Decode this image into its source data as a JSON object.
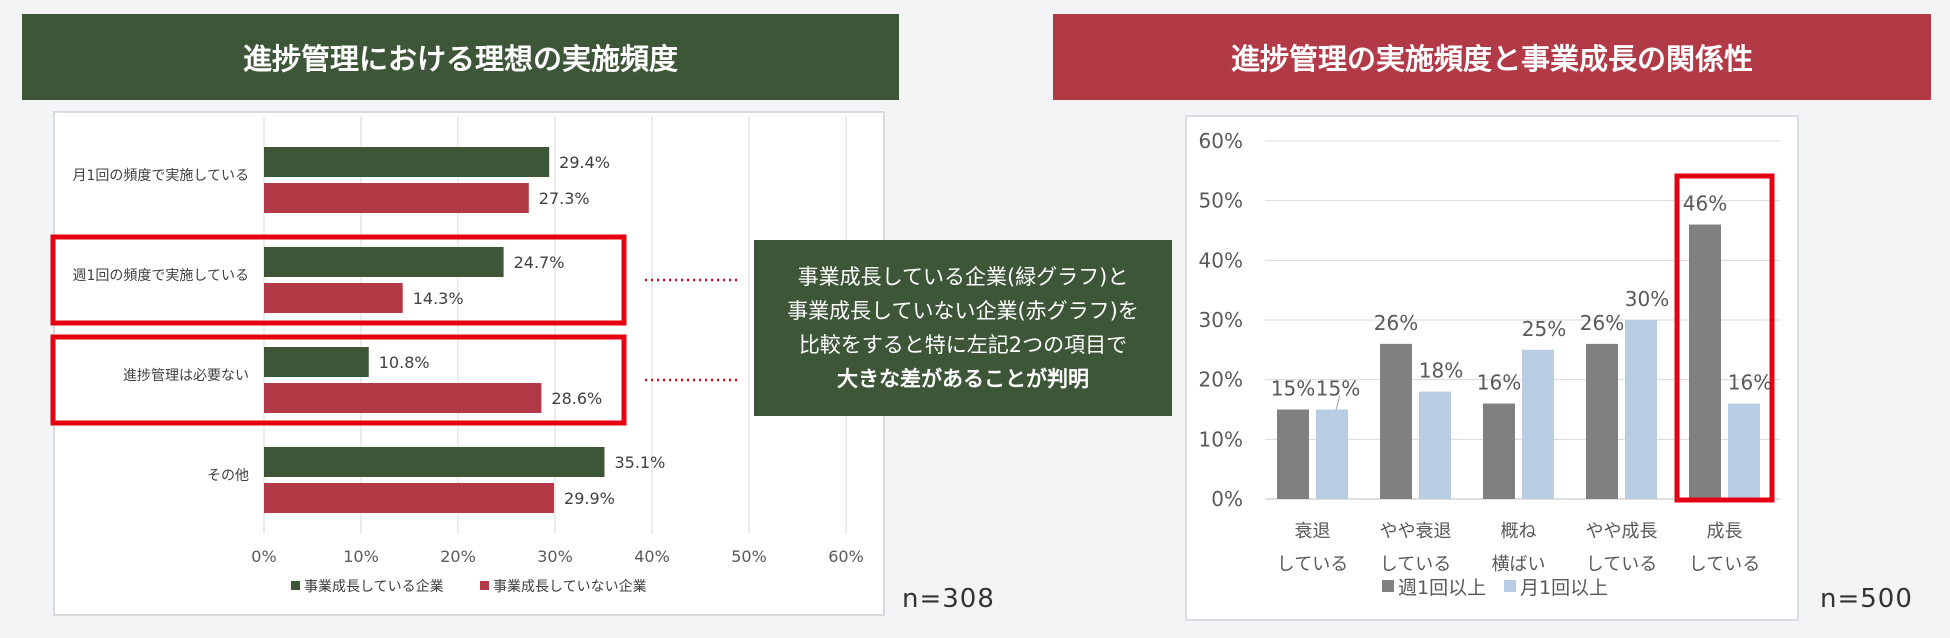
{
  "left_panel": {
    "title": "進捗管理における理想の実施頻度",
    "sample_size": "n=308"
  },
  "right_panel": {
    "title": "進捗管理の実施頻度と事業成長の関係性",
    "sample_size": "n=500"
  },
  "callout": {
    "lines": [
      "事業成長している企業(緑グラフ)と",
      "事業成長していない企業(赤グラフ)を",
      "比較をすると特に左記2つの項目で",
      "大きな差があることが判明"
    ]
  },
  "colors": {
    "green": "#3e5638",
    "red": "#b23a47",
    "highlight": "#e60012",
    "gray": "#808080",
    "lightblue": "#b8cce4"
  },
  "chart_data": [
    {
      "type": "bar",
      "orientation": "horizontal",
      "categories": [
        "月1回の頻度で実施している",
        "週1回の頻度で実施している",
        "進捗管理は必要ない",
        "その他"
      ],
      "series": [
        {
          "name": "事業成長している企業",
          "values": [
            29.4,
            24.7,
            10.8,
            35.1
          ],
          "labels": [
            "29.4%",
            "24.7%",
            "10.8%",
            "35.1%"
          ],
          "color": "#3e5638"
        },
        {
          "name": "事業成長していない企業",
          "values": [
            27.3,
            14.3,
            28.6,
            29.9
          ],
          "labels": [
            "27.3%",
            "14.3%",
            "28.6%",
            "29.9%"
          ],
          "color": "#b23a47"
        }
      ],
      "xlim": [
        0,
        60
      ],
      "xticks": [
        "0%",
        "10%",
        "20%",
        "30%",
        "40%",
        "50%",
        "60%"
      ],
      "grid": true,
      "legend": "bottom",
      "highlighted_categories": [
        "週1回の頻度で実施している",
        "進捗管理は必要ない"
      ]
    },
    {
      "type": "bar",
      "orientation": "vertical",
      "categories": [
        [
          "衰退",
          "している"
        ],
        [
          "やや衰退",
          "している"
        ],
        [
          "概ね",
          "横ばい"
        ],
        [
          "やや成長",
          "している"
        ],
        [
          "成長",
          "している"
        ]
      ],
      "series": [
        {
          "name": "週1回以上",
          "values": [
            15,
            26,
            16,
            26,
            46
          ],
          "labels": [
            "15%",
            "26%",
            "16%",
            "26%",
            "46%"
          ],
          "color": "#808080"
        },
        {
          "name": "月1回以上",
          "values": [
            15,
            18,
            25,
            30,
            16
          ],
          "labels": [
            "15%",
            "18%",
            "25%",
            "30%",
            "16%"
          ],
          "color": "#b8cce4"
        }
      ],
      "ylim": [
        0,
        60
      ],
      "yticks": [
        "0%",
        "10%",
        "20%",
        "30%",
        "40%",
        "50%",
        "60%"
      ],
      "grid": true,
      "legend": "bottom",
      "highlighted_categories": [
        "成長 している"
      ]
    }
  ]
}
